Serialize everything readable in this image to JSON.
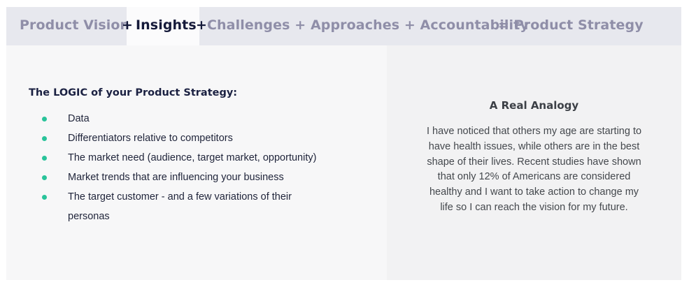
{
  "header": {
    "product_vision": "Product Vision",
    "plus_1": "+",
    "insights": "Insights",
    "plus_2": "+",
    "rest": "Challenges + Approaches + Accountability",
    "equals": "= Product Strategy"
  },
  "logic": {
    "title": "The LOGIC of your Product Strategy:",
    "items": [
      "Data",
      "Differentiators relative to competitors",
      "The market need (audience, target market, opportunity)",
      "Market trends that are influencing your business",
      "The target customer - and a few variations of their personas"
    ]
  },
  "analogy": {
    "title": "A Real Analogy",
    "body": "I have noticed that others my age are starting to have health issues, while others are in the best shape of their lives. Recent studies have shown that only 12% of Americans are considered healthy and I want to take action to change my life so I can reach the vision for my future."
  },
  "colors": {
    "bullet": "#29c39a",
    "header_bg": "#e7e8ee",
    "header_text": "#8f8ea8",
    "active_text": "#151a3a"
  }
}
